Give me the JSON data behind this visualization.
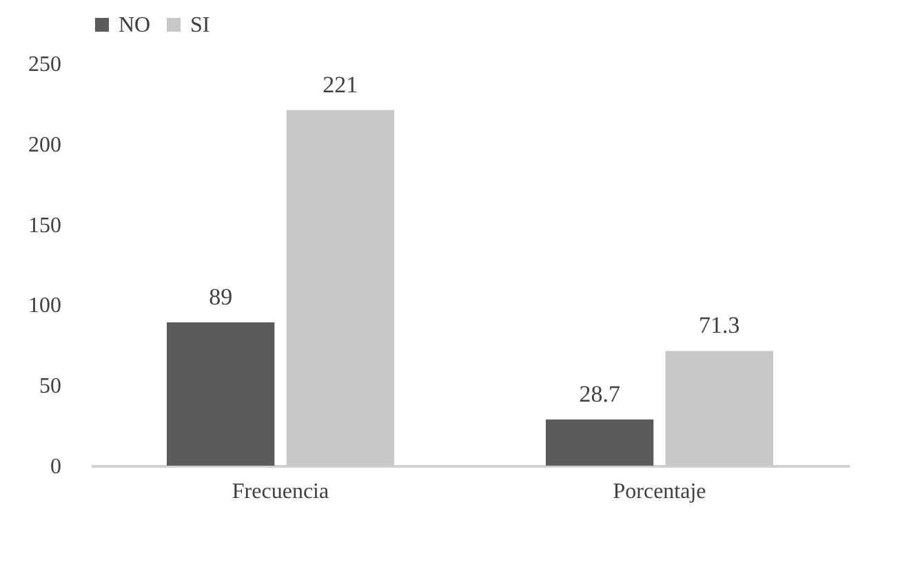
{
  "chart_data": {
    "type": "bar",
    "categories": [
      "Frecuencia",
      "Porcentaje"
    ],
    "series": [
      {
        "name": "NO",
        "color": "#5a5a5a",
        "values": [
          89,
          28.7
        ]
      },
      {
        "name": "SI",
        "color": "#c8c8c8",
        "values": [
          221,
          71.3
        ]
      }
    ],
    "ylim": [
      0,
      250
    ],
    "yticks": [
      0,
      50,
      100,
      150,
      200,
      250
    ],
    "grid": false,
    "legend": "top",
    "data_labels": true
  }
}
